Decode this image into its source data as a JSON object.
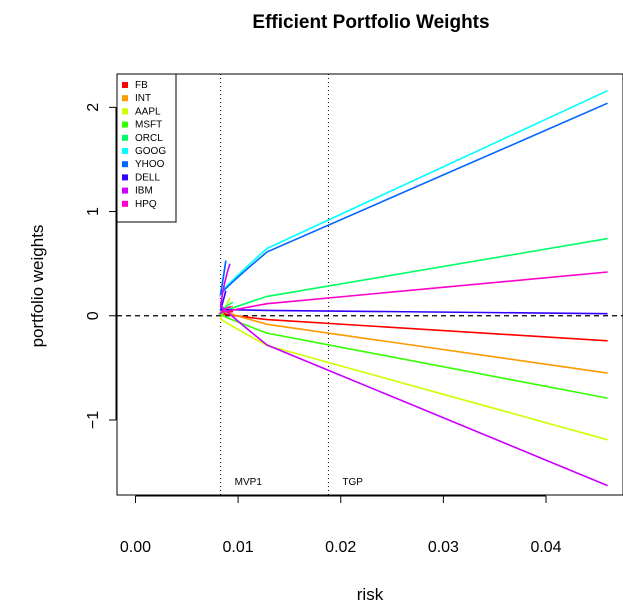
{
  "chart_data": {
    "type": "line",
    "title": "Efficient Portfolio Weights",
    "xlabel": "risk",
    "ylabel": "portfolio weights",
    "xlim": [
      -0.0018,
      0.0475
    ],
    "ylim": [
      -1.72,
      2.32
    ],
    "x_ticks": [
      {
        "value": 0.0,
        "label": "0.00"
      },
      {
        "value": 0.01,
        "label": "0.01"
      },
      {
        "value": 0.02,
        "label": "0.02"
      },
      {
        "value": 0.03,
        "label": "0.03"
      },
      {
        "value": 0.04,
        "label": "0.04"
      }
    ],
    "y_ticks": [
      {
        "value": -1,
        "label": "−1"
      },
      {
        "value": 0,
        "label": "0"
      },
      {
        "value": 1,
        "label": "1"
      },
      {
        "value": 2,
        "label": "2"
      }
    ],
    "grid": false,
    "legend_position": "top-left",
    "reference_lines": [
      {
        "orientation": "horizontal",
        "value": 0,
        "style": "dashed",
        "label": ""
      },
      {
        "orientation": "vertical",
        "value": 0.0083,
        "style": "dotted",
        "label": "MVP1"
      },
      {
        "orientation": "vertical",
        "value": 0.0188,
        "style": "dotted",
        "label": "TGP"
      }
    ],
    "mvp_risk": 0.0083,
    "max_risk": 0.046,
    "series": [
      {
        "name": "FB",
        "color": "#FF0000",
        "mvp": 0.02,
        "end": -0.24,
        "branch": [
          0.0086,
          0.0095,
          0.02
        ]
      },
      {
        "name": "INT",
        "color": "#FF9900",
        "mvp": 0.05,
        "end": -0.55,
        "branch": [
          0.0086,
          0.0095,
          0.04
        ]
      },
      {
        "name": "AAPL",
        "color": "#CCFF00",
        "mvp": -0.03,
        "end": -1.19,
        "branch": [
          0.0087,
          0.0092,
          0.2
        ]
      },
      {
        "name": "MSFT",
        "color": "#33FF00",
        "mvp": 0.01,
        "end": -0.79,
        "branch": [
          0.0086,
          0.0093,
          0.05
        ]
      },
      {
        "name": "ORCL",
        "color": "#00FF66",
        "mvp": 0.03,
        "end": 0.74,
        "branch": [
          0.0086,
          0.0095,
          0.1
        ]
      },
      {
        "name": "GOOG",
        "color": "#00FFFF",
        "mvp": 0.22,
        "end": 2.16,
        "branch": [
          0.0086,
          0.0088,
          0.3
        ]
      },
      {
        "name": "YHOO",
        "color": "#0066FF",
        "mvp": 0.21,
        "end": 2.04,
        "branch": [
          0.0086,
          0.0088,
          0.32
        ]
      },
      {
        "name": "DELL",
        "color": "#3300FF",
        "mvp": 0.06,
        "end": 0.02,
        "branch": [
          0.0086,
          0.0088,
          0.18
        ]
      },
      {
        "name": "IBM",
        "color": "#CC00FF",
        "mvp": 0.1,
        "end": -1.63,
        "branch": [
          0.0086,
          0.0092,
          0.4
        ]
      },
      {
        "name": "HPQ",
        "color": "#FF00CC",
        "mvp": 0.03,
        "end": 0.42,
        "branch": [
          0.0086,
          0.0093,
          0.06
        ]
      }
    ]
  }
}
